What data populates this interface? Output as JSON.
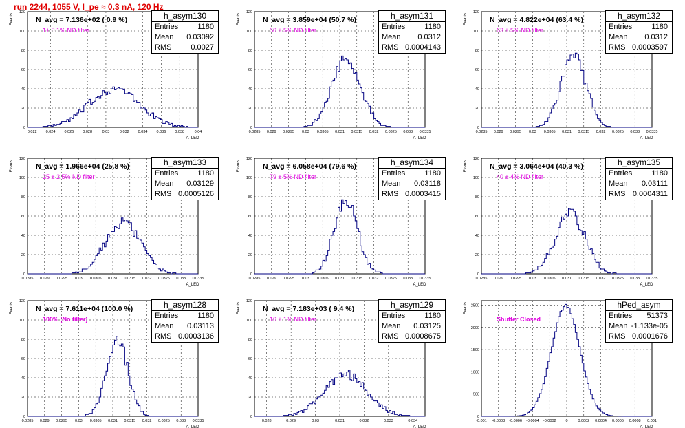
{
  "page": {
    "title": "run 2244,  1055 V, I_pe ≈ 0.3 nA, 120 Hz"
  },
  "colors": {
    "hist": "#000080",
    "annotation": "#e000e0",
    "title": "#e00000",
    "grid": "#000000"
  },
  "chart_data": [
    {
      "type": "bar",
      "hist_name": "h_asym130",
      "navg_label": "N_avg = 7.136e+02 ( 0.9 %)",
      "annotation": "1± 0.1% ND filter",
      "stats": {
        "Entries": "1180",
        "Mean": "0.03092",
        "RMS": "0.0027"
      },
      "ylabel": "Events",
      "xlabel": "A_LED",
      "xlim": [
        0.0215,
        0.04
      ],
      "ylim": [
        0,
        120
      ],
      "xticks": [
        0.022,
        0.024,
        0.026,
        0.028,
        0.03,
        0.032,
        0.034,
        0.036,
        0.038,
        0.04
      ],
      "xtick_labels": [
        "0.022",
        "0.024",
        "0.026",
        "0.028",
        "0.03",
        "0.032",
        "0.034",
        "0.036",
        "0.038",
        "0.04"
      ],
      "yticks": [
        0,
        20,
        40,
        60,
        80,
        100,
        120
      ],
      "mean": 0.03092,
      "rms": 0.0027,
      "peak": 40
    },
    {
      "type": "bar",
      "hist_name": "h_asym131",
      "navg_label": "N_avg = 3.859e+04 (50.7 %)",
      "annotation": "50 ± 5% ND filter",
      "stats": {
        "Entries": "1180",
        "Mean": "0.0312",
        "RMS": "0.0004143"
      },
      "ylabel": "Events",
      "xlabel": "A_LED",
      "xlim": [
        0.0285,
        0.0335
      ],
      "ylim": [
        0,
        120
      ],
      "xticks": [
        0.0285,
        0.029,
        0.0295,
        0.03,
        0.0305,
        0.031,
        0.0315,
        0.032,
        0.0325,
        0.033,
        0.0335
      ],
      "xtick_labels": [
        "0.0285",
        "0.029",
        "0.0295",
        "0.03",
        "0.0305",
        "0.031",
        "0.0315",
        "0.032",
        "0.0325",
        "0.033",
        "0.0335"
      ],
      "yticks": [
        0,
        20,
        40,
        60,
        80,
        100,
        120
      ],
      "mean": 0.0312,
      "rms": 0.0004143,
      "peak": 72
    },
    {
      "type": "bar",
      "hist_name": "h_asym132",
      "navg_label": "N_avg = 4.822e+04 (63.4 %)",
      "annotation": "63 ± 5% ND filter",
      "stats": {
        "Entries": "1180",
        "Mean": "0.0312",
        "RMS": "0.0003597"
      },
      "ylabel": "Events",
      "xlabel": "A_LED",
      "xlim": [
        0.0285,
        0.0335
      ],
      "ylim": [
        0,
        120
      ],
      "xticks": [
        0.0285,
        0.029,
        0.0295,
        0.03,
        0.0305,
        0.031,
        0.0315,
        0.032,
        0.0325,
        0.033,
        0.0335
      ],
      "xtick_labels": [
        "0.0285",
        "0.029",
        "0.0295",
        "0.03",
        "0.0305",
        "0.031",
        "0.0315",
        "0.032",
        "0.0325",
        "0.033",
        "0.0335"
      ],
      "yticks": [
        0,
        20,
        40,
        60,
        80,
        100,
        120
      ],
      "mean": 0.0312,
      "rms": 0.0003597,
      "peak": 75
    },
    {
      "type": "bar",
      "hist_name": "h_asym133",
      "navg_label": "N_avg = 1.966e+04 (25.8 %)",
      "annotation": "25 ± 2.5% ND filter",
      "stats": {
        "Entries": "1180",
        "Mean": "0.03129",
        "RMS": "0.0005126"
      },
      "ylabel": "Events",
      "xlabel": "A_LED",
      "xlim": [
        0.0285,
        0.0335
      ],
      "ylim": [
        0,
        120
      ],
      "xticks": [
        0.0285,
        0.029,
        0.0295,
        0.03,
        0.0305,
        0.031,
        0.0315,
        0.032,
        0.0325,
        0.033,
        0.0335
      ],
      "xtick_labels": [
        "0.0285",
        "0.029",
        "0.0295",
        "0.03",
        "0.0305",
        "0.031",
        "0.0315",
        "0.032",
        "0.0325",
        "0.033",
        "0.0335"
      ],
      "yticks": [
        0,
        20,
        40,
        60,
        80,
        100,
        120
      ],
      "mean": 0.03129,
      "rms": 0.0005126,
      "peak": 54
    },
    {
      "type": "bar",
      "hist_name": "h_asym134",
      "navg_label": "N_avg = 6.058e+04 (79.6 %)",
      "annotation": "79 ± 5% ND filter",
      "stats": {
        "Entries": "1180",
        "Mean": "0.03118",
        "RMS": "0.0003415"
      },
      "ylabel": "Events",
      "xlabel": "A_LED",
      "xlim": [
        0.0285,
        0.0335
      ],
      "ylim": [
        0,
        120
      ],
      "xticks": [
        0.0285,
        0.029,
        0.0295,
        0.03,
        0.0305,
        0.031,
        0.0315,
        0.032,
        0.0325,
        0.033,
        0.0335
      ],
      "xtick_labels": [
        "0.0285",
        "0.029",
        "0.0295",
        "0.03",
        "0.0305",
        "0.031",
        "0.0315",
        "0.032",
        "0.0325",
        "0.033",
        "0.0335"
      ],
      "yticks": [
        0,
        20,
        40,
        60,
        80,
        100,
        120
      ],
      "mean": 0.03118,
      "rms": 0.0003415,
      "peak": 77
    },
    {
      "type": "bar",
      "hist_name": "h_asym135",
      "navg_label": "N_avg = 3.064e+04 (40.3 %)",
      "annotation": "40 ± 4% ND filter",
      "stats": {
        "Entries": "1180",
        "Mean": "0.03111",
        "RMS": "0.0004311"
      },
      "ylabel": "Events",
      "xlabel": "A_LED",
      "xlim": [
        0.0285,
        0.0335
      ],
      "ylim": [
        0,
        120
      ],
      "xticks": [
        0.0285,
        0.029,
        0.0295,
        0.03,
        0.0305,
        0.031,
        0.0315,
        0.032,
        0.0325,
        0.033,
        0.0335
      ],
      "xtick_labels": [
        "0.0285",
        "0.029",
        "0.0295",
        "0.03",
        "0.0305",
        "0.031",
        "0.0315",
        "0.032",
        "0.0325",
        "0.033",
        "0.0335"
      ],
      "yticks": [
        0,
        20,
        40,
        60,
        80,
        100,
        120
      ],
      "mean": 0.03111,
      "rms": 0.0004311,
      "peak": 62
    },
    {
      "type": "bar",
      "hist_name": "h_asym128",
      "navg_label": "N_avg = 7.611e+04 (100.0 %)",
      "annotation": "100% (No filter)",
      "stats": {
        "Entries": "1180",
        "Mean": "0.03113",
        "RMS": "0.0003136"
      },
      "ylabel": "Events",
      "xlabel": "A_LED",
      "xlim": [
        0.0285,
        0.0335
      ],
      "ylim": [
        0,
        120
      ],
      "xticks": [
        0.0285,
        0.029,
        0.0295,
        0.03,
        0.0305,
        0.031,
        0.0315,
        0.032,
        0.0325,
        0.033,
        0.0335
      ],
      "xtick_labels": [
        "0.0285",
        "0.029",
        "0.0295",
        "0.03",
        "0.0305",
        "0.031",
        "0.0315",
        "0.032",
        "0.0325",
        "0.033",
        "0.0335"
      ],
      "yticks": [
        0,
        20,
        40,
        60,
        80,
        100,
        120
      ],
      "mean": 0.03113,
      "rms": 0.0003136,
      "peak": 80
    },
    {
      "type": "bar",
      "hist_name": "h_asym129",
      "navg_label": "N_avg = 7.183e+03 ( 9.4 %)",
      "annotation": "10 ± 1% ND filter",
      "stats": {
        "Entries": "1180",
        "Mean": "0.03125",
        "RMS": "0.0008675"
      },
      "ylabel": "Events",
      "xlabel": "A_LED",
      "xlim": [
        0.0275,
        0.0345
      ],
      "ylim": [
        0,
        120
      ],
      "xticks": [
        0.028,
        0.029,
        0.03,
        0.031,
        0.032,
        0.033,
        0.034
      ],
      "xtick_labels": [
        "0.028",
        "0.029",
        "0.03",
        "0.031",
        "0.032",
        "0.033",
        "0.034"
      ],
      "yticks": [
        0,
        20,
        40,
        60,
        80,
        100,
        120
      ],
      "mean": 0.03125,
      "rms": 0.0008675,
      "peak": 44
    },
    {
      "type": "bar",
      "hist_name": "hPed_asym",
      "navg_label": "",
      "annotation": "Shutter Closed",
      "stats": {
        "Entries": "51373",
        "Mean": "-1.133e-05",
        "RMS": "0.0001676"
      },
      "ylabel": "Events",
      "xlabel": "A_LED",
      "xlim": [
        -0.001,
        0.001
      ],
      "ylim": [
        0,
        2600
      ],
      "xticks": [
        -0.001,
        -0.0008,
        -0.0006,
        -0.0004,
        -0.0002,
        0,
        0.0002,
        0.0004,
        0.0006,
        0.0008,
        0.001
      ],
      "xtick_labels": [
        "-0.001",
        "-0.0008",
        "-0.0006",
        "-0.0004",
        "-0.0002",
        "0",
        "0.0002",
        "0.0004",
        "0.0006",
        "0.0008",
        "0.001"
      ],
      "yticks": [
        0,
        500,
        1000,
        1500,
        2000,
        2500
      ],
      "mean": -1.133e-05,
      "rms": 0.0001676,
      "peak": 2480
    }
  ]
}
